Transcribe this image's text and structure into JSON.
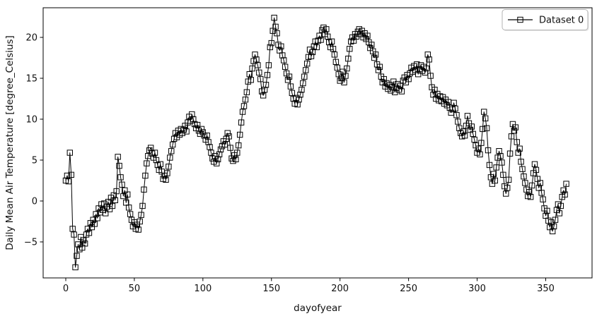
{
  "figure": {
    "background": "#ffffff",
    "axes_background": "#ffffff",
    "axes_edge_color": "#000000",
    "text_color": "#111111"
  },
  "legend": {
    "entries": [
      {
        "label": "Dataset 0",
        "marker": "open-square",
        "line_color": "#000000"
      }
    ],
    "position": "upper-right",
    "border_color": "#b4b4b4",
    "background": "#ffffff"
  },
  "chart_data": {
    "type": "line",
    "title": "",
    "xlabel": "dayofyear",
    "ylabel": "Daily Mean Air Temperature [degree_Celsius]",
    "marker": "open-square",
    "marker_size_px": 7.4,
    "line_color": "#000000",
    "line_width": 1,
    "grid": false,
    "x_ticks": [
      0,
      50,
      100,
      150,
      200,
      250,
      300,
      350
    ],
    "y_ticks": [
      -5,
      0,
      5,
      10,
      15,
      20
    ],
    "xlim": [
      -16.5,
      383.8
    ],
    "ylim": [
      -9.4,
      23.62
    ],
    "series": [
      {
        "name": "Dataset 0",
        "x_start": 0,
        "x_step": 1,
        "y": [
          2.5,
          3.1,
          2.4,
          5.9,
          3.2,
          -3.4,
          -4.1,
          -8.1,
          -6.7,
          -5.3,
          -5.9,
          -4.4,
          -5.7,
          -4.8,
          -5.2,
          -4.1,
          -3.4,
          -3.9,
          -2.7,
          -3.2,
          -2.3,
          -2.8,
          -1.6,
          -2.1,
          -0.9,
          -1.4,
          -0.4,
          -1.1,
          -0.3,
          -1.5,
          -0.7,
          -0.1,
          -1.0,
          0.4,
          -0.6,
          0.7,
          0.1,
          1.2,
          5.4,
          4.3,
          2.9,
          2.0,
          0.6,
          1.3,
          -0.2,
          0.8,
          -0.8,
          -1.6,
          -2.3,
          -3.1,
          -2.6,
          -3.4,
          -2.9,
          -3.5,
          -2.5,
          -1.7,
          -0.6,
          1.4,
          3.1,
          4.6,
          5.5,
          6.2,
          6.5,
          5.8,
          5.3,
          5.9,
          5.0,
          4.4,
          3.8,
          4.5,
          3.6,
          2.7,
          3.1,
          2.6,
          3.4,
          4.2,
          5.3,
          6.1,
          6.9,
          7.6,
          8.3,
          7.8,
          8.6,
          8.1,
          8.8,
          8.3,
          8.7,
          9.2,
          8.5,
          9.6,
          10.3,
          9.8,
          10.6,
          10.0,
          9.4,
          8.9,
          9.3,
          8.6,
          8.2,
          8.8,
          8.4,
          8.0,
          7.5,
          8.0,
          7.2,
          6.6,
          5.9,
          5.2,
          4.8,
          5.5,
          4.6,
          5.1,
          5.7,
          6.3,
          6.7,
          7.3,
          6.9,
          7.6,
          8.3,
          7.9,
          6.5,
          5.2,
          4.9,
          5.6,
          5.1,
          5.9,
          6.8,
          8.1,
          9.6,
          10.9,
          11.6,
          12.4,
          13.3,
          14.6,
          15.5,
          14.8,
          16.2,
          17.1,
          17.9,
          17.3,
          16.6,
          15.7,
          14.9,
          13.4,
          12.9,
          13.6,
          14.2,
          15.4,
          16.6,
          18.8,
          19.3,
          20.8,
          22.4,
          21.3,
          20.5,
          19.1,
          18.4,
          18.9,
          17.8,
          17.2,
          16.4,
          15.6,
          14.8,
          15.2,
          14.0,
          13.2,
          12.5,
          11.9,
          12.6,
          11.8,
          12.4,
          13.0,
          13.6,
          14.4,
          15.2,
          16.0,
          16.8,
          17.6,
          18.5,
          17.7,
          18.2,
          18.9,
          19.5,
          18.8,
          19.6,
          20.2,
          19.7,
          20.9,
          21.2,
          20.4,
          21.0,
          20.1,
          19.4,
          18.8,
          19.5,
          18.6,
          17.9,
          17.0,
          16.3,
          15.5,
          14.7,
          15.0,
          15.8,
          14.5,
          15.3,
          16.2,
          17.4,
          18.6,
          19.5,
          20.0,
          19.6,
          20.4,
          20.1,
          20.7,
          21.0,
          20.4,
          20.8,
          20.0,
          20.5,
          19.8,
          20.2,
          19.4,
          18.7,
          19.1,
          18.3,
          17.5,
          17.9,
          16.7,
          16.0,
          16.4,
          15.2,
          14.5,
          14.9,
          14.0,
          14.4,
          13.7,
          14.2,
          13.5,
          13.9,
          14.6,
          13.3,
          13.8,
          14.3,
          13.6,
          14.1,
          13.4,
          14.7,
          15.1,
          14.5,
          15.4,
          14.9,
          15.6,
          16.3,
          15.8,
          16.5,
          16.0,
          16.7,
          15.5,
          16.1,
          16.6,
          15.9,
          16.4,
          15.7,
          16.2,
          17.9,
          17.3,
          15.3,
          13.9,
          13.0,
          13.6,
          12.5,
          13.1,
          12.3,
          12.8,
          12.2,
          12.7,
          11.9,
          12.4,
          11.7,
          12.1,
          11.4,
          10.8,
          11.2,
          12.0,
          11.3,
          10.5,
          9.7,
          8.9,
          8.3,
          7.9,
          8.5,
          8.0,
          9.2,
          10.4,
          9.5,
          8.7,
          9.1,
          8.2,
          7.5,
          6.8,
          5.9,
          6.4,
          5.7,
          7.1,
          8.8,
          10.9,
          10.1,
          8.9,
          6.2,
          4.4,
          2.9,
          2.1,
          3.3,
          2.5,
          4.1,
          5.3,
          6.1,
          5.5,
          4.7,
          3.2,
          1.8,
          0.9,
          1.6,
          2.6,
          5.8,
          7.9,
          9.4,
          8.6,
          9.0,
          7.2,
          5.9,
          6.4,
          4.8,
          3.9,
          3.0,
          2.2,
          1.4,
          0.6,
          1.1,
          0.5,
          1.9,
          3.4,
          4.5,
          3.8,
          2.7,
          1.6,
          2.2,
          1.0,
          0.2,
          -0.9,
          -1.8,
          -1.2,
          -2.4,
          -3.2,
          -2.6,
          -3.7,
          -3.1,
          -2.3,
          -1.1,
          -0.4,
          -1.5,
          -0.6,
          0.5,
          1.3,
          0.8,
          2.1
        ]
      }
    ]
  }
}
